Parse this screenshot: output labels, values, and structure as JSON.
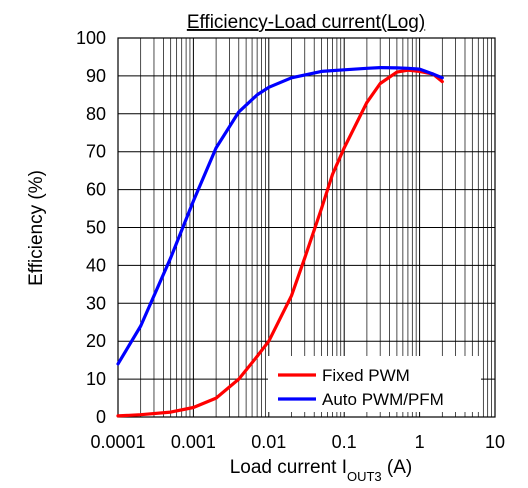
{
  "chart_data": {
    "type": "line",
    "title": "Efficiency-Load current(Log)",
    "xlabel": {
      "prefix": "Load current I",
      "subscript": "OUT3",
      "suffix": " (A)"
    },
    "ylabel": "Efficiency (%)",
    "x_scale": "log",
    "xlim": [
      0.0001,
      10
    ],
    "ylim": [
      0,
      100
    ],
    "grid": true,
    "legend_position": "bottom-right",
    "x_ticks": [
      {
        "value": 0.0001,
        "label": "0.0001"
      },
      {
        "value": 0.001,
        "label": "0.001"
      },
      {
        "value": 0.01,
        "label": "0.01"
      },
      {
        "value": 0.1,
        "label": "0.1"
      },
      {
        "value": 1,
        "label": "1"
      },
      {
        "value": 10,
        "label": "10"
      }
    ],
    "y_ticks": [
      {
        "value": 0,
        "label": "0"
      },
      {
        "value": 10,
        "label": "10"
      },
      {
        "value": 20,
        "label": "20"
      },
      {
        "value": 30,
        "label": "30"
      },
      {
        "value": 40,
        "label": "40"
      },
      {
        "value": 50,
        "label": "50"
      },
      {
        "value": 60,
        "label": "60"
      },
      {
        "value": 70,
        "label": "70"
      },
      {
        "value": 80,
        "label": "80"
      },
      {
        "value": 90,
        "label": "90"
      },
      {
        "value": 100,
        "label": "100"
      }
    ],
    "series": [
      {
        "name": "Fixed PWM",
        "color": "#ff0000",
        "x": [
          0.0001,
          0.0002,
          0.0005,
          0.001,
          0.002,
          0.004,
          0.007,
          0.01,
          0.02,
          0.03,
          0.05,
          0.07,
          0.1,
          0.2,
          0.3,
          0.5,
          0.7,
          1,
          1.5,
          2
        ],
        "y": [
          0.3,
          0.6,
          1.3,
          2.5,
          5,
          10,
          16,
          20,
          32,
          42,
          55,
          64,
          71,
          83,
          88,
          91,
          91.5,
          91.2,
          90.5,
          88.5
        ]
      },
      {
        "name": "Auto PWM/PFM",
        "color": "#0000ff",
        "x": [
          0.0001,
          0.0002,
          0.0005,
          0.001,
          0.002,
          0.004,
          0.007,
          0.01,
          0.02,
          0.05,
          0.1,
          0.2,
          0.3,
          0.5,
          0.7,
          1,
          1.5,
          2
        ],
        "y": [
          14,
          24,
          42,
          57,
          71,
          80.5,
          85,
          87,
          89.5,
          91.2,
          91.6,
          92,
          92.2,
          92.1,
          92,
          91.8,
          90.5,
          89.5
        ]
      }
    ]
  }
}
